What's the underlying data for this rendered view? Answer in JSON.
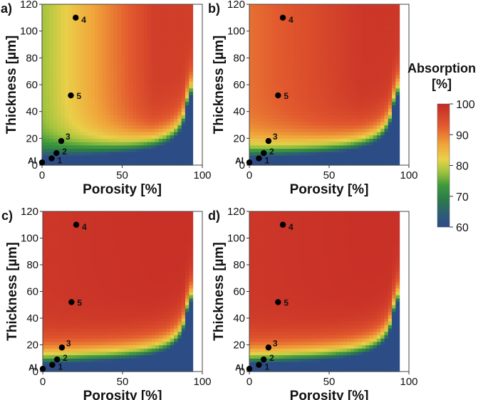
{
  "chart_data": {
    "type": "heatmap",
    "panels": [
      {
        "label": "a)",
        "min_absorption": 60,
        "plateau_low": 78,
        "plateau_high": 97,
        "xlabel": "Porosity [%]",
        "ylabel": "Thickness [µm]"
      },
      {
        "label": "b)",
        "min_absorption": 60,
        "plateau_low": 91,
        "plateau_high": 98,
        "xlabel": "Porosity [%]",
        "ylabel": "Thickness [µm]"
      },
      {
        "label": "c)",
        "min_absorption": 60,
        "plateau_low": 98,
        "plateau_high": 99,
        "xlabel": "Porosity [%]",
        "ylabel": "Thickness [µm]"
      },
      {
        "label": "d)",
        "min_absorption": 60,
        "plateau_low": 98,
        "plateau_high": 99,
        "xlabel": "Porosity [%]",
        "ylabel": "Thickness [µm]"
      }
    ],
    "x_ticks": [
      "0",
      "50",
      "100"
    ],
    "y_ticks": [
      "0",
      "20",
      "40",
      "60",
      "80",
      "100",
      "120"
    ],
    "xlim": [
      0,
      100
    ],
    "ylim": [
      0,
      120
    ],
    "points": [
      {
        "label": "Al",
        "x": 0,
        "y": 2
      },
      {
        "label": "1",
        "x": 6,
        "y": 5
      },
      {
        "label": "2",
        "x": 9,
        "y": 9
      },
      {
        "label": "3",
        "x": 12,
        "y": 18
      },
      {
        "label": "4",
        "x": 21,
        "y": 110
      },
      {
        "label": "5",
        "x": 18,
        "y": 52
      }
    ],
    "colorbar": {
      "title_line1": "Absorption",
      "title_line2": "[%]",
      "min": 60,
      "max": 100,
      "ticks": [
        "100",
        "90",
        "80",
        "70",
        "60"
      ],
      "colors": [
        "#c42a26",
        "#e25a2e",
        "#f0a43a",
        "#ead04a",
        "#a2c43e",
        "#3f9a3c",
        "#2b7a4a",
        "#2e5b7a",
        "#2c4c86"
      ]
    }
  }
}
